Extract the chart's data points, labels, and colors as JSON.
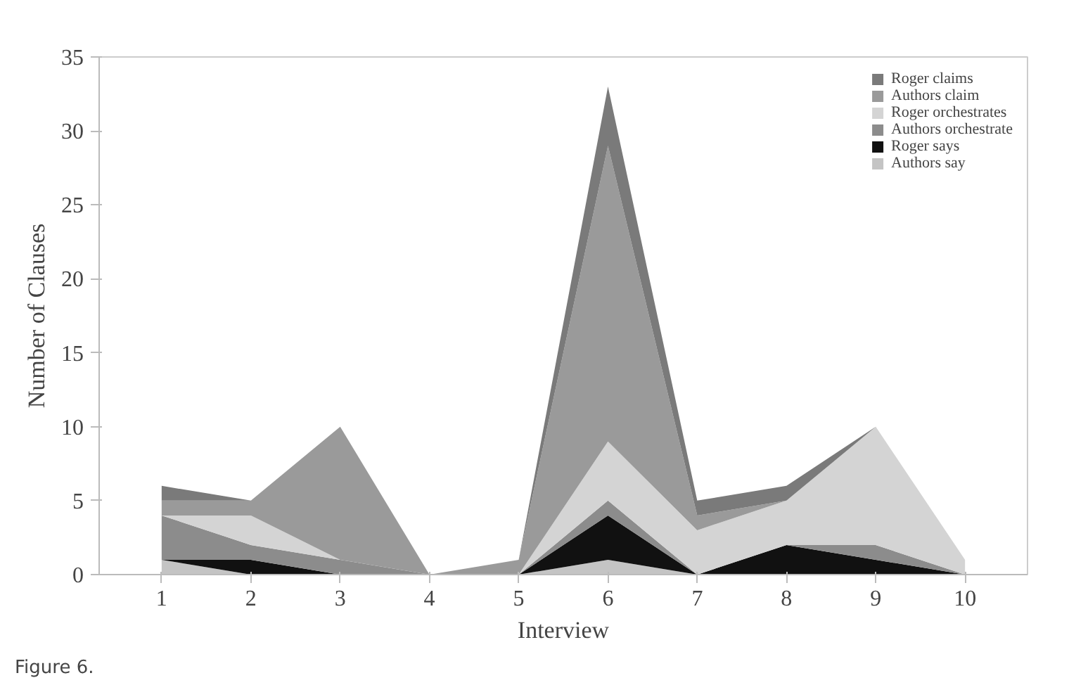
{
  "chart_data": {
    "type": "area",
    "stacked": true,
    "xlabel": "Interview",
    "ylabel": "Number of Clauses",
    "x": [
      1,
      2,
      3,
      4,
      5,
      6,
      7,
      8,
      9,
      10
    ],
    "xlim": [
      0.3,
      10.7
    ],
    "xticks": [
      1,
      2,
      3,
      4,
      5,
      6,
      7,
      8,
      9,
      10
    ],
    "ylim": [
      0,
      35
    ],
    "yticks": [
      0,
      5,
      10,
      15,
      20,
      25,
      30,
      35
    ],
    "series": [
      {
        "name": "Authors say",
        "color": "#c4c4c4",
        "values": [
          1,
          0,
          0,
          0,
          0,
          1,
          0,
          0,
          0,
          0
        ]
      },
      {
        "name": "Roger says",
        "color": "#111111",
        "values": [
          0,
          1,
          0,
          0,
          0,
          3,
          0,
          2,
          1,
          0
        ]
      },
      {
        "name": "Authors orchestrate",
        "color": "#8c8c8c",
        "values": [
          3,
          1,
          1,
          0,
          0,
          1,
          0,
          0,
          1,
          0
        ]
      },
      {
        "name": "Roger orchestrates",
        "color": "#d4d4d4",
        "values": [
          0,
          2,
          0,
          0,
          0,
          4,
          3,
          3,
          8,
          1
        ]
      },
      {
        "name": "Authors claim",
        "color": "#9a9a9a",
        "values": [
          1,
          1,
          9,
          0,
          1,
          20,
          1,
          0,
          0,
          0
        ]
      },
      {
        "name": "Roger claims",
        "color": "#7a7a7a",
        "values": [
          1,
          0,
          0,
          0,
          0,
          4,
          1,
          1,
          0,
          0
        ]
      }
    ],
    "legend": "top right",
    "grid": false,
    "annotations": [
      "Figure 6."
    ]
  }
}
